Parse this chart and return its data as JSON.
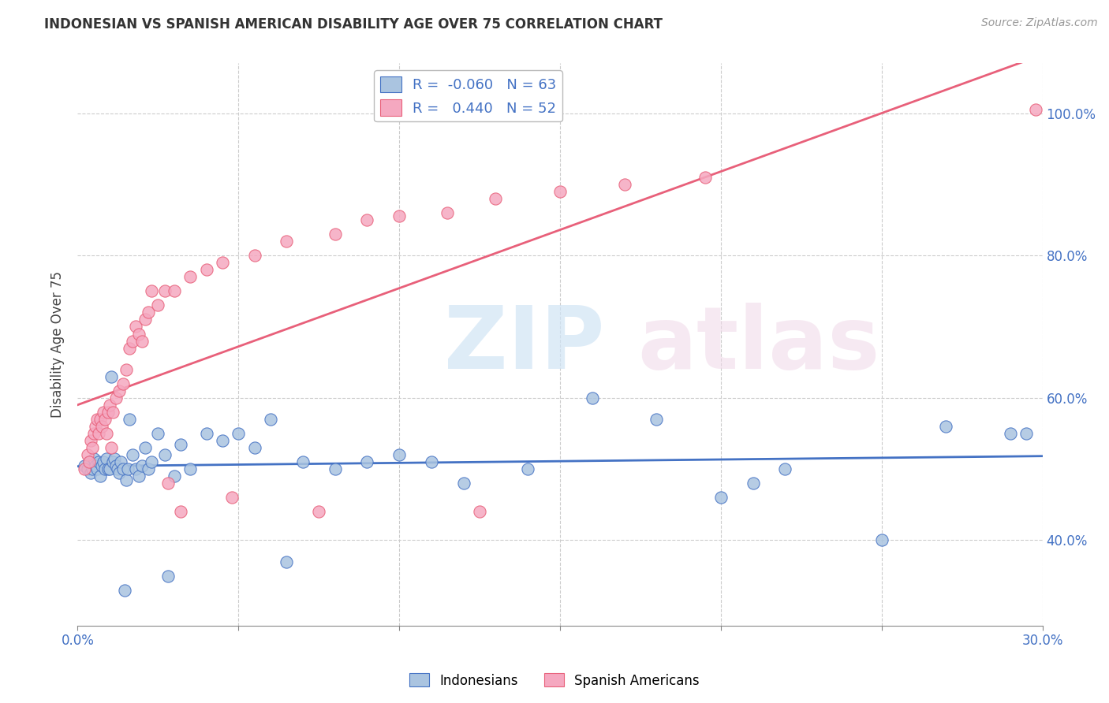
{
  "title": "INDONESIAN VS SPANISH AMERICAN DISABILITY AGE OVER 75 CORRELATION CHART",
  "source": "Source: ZipAtlas.com",
  "ylabel": "Disability Age Over 75",
  "xlim": [
    0.0,
    30.0
  ],
  "ylim": [
    28.0,
    107.0
  ],
  "yticks": [
    40.0,
    60.0,
    80.0,
    100.0
  ],
  "ytick_labels": [
    "40.0%",
    "60.0%",
    "80.0%",
    "100.0%"
  ],
  "legend_r_blue": "-0.060",
  "legend_n_blue": "63",
  "legend_r_pink": "0.440",
  "legend_n_pink": "52",
  "blue_color": "#aac4e0",
  "pink_color": "#f5a8c0",
  "trend_blue": "#4472c4",
  "trend_pink": "#e8607a",
  "indonesians_x": [
    0.2,
    0.3,
    0.35,
    0.4,
    0.45,
    0.5,
    0.55,
    0.6,
    0.65,
    0.7,
    0.75,
    0.8,
    0.85,
    0.9,
    0.95,
    1.0,
    1.05,
    1.1,
    1.15,
    1.2,
    1.25,
    1.3,
    1.35,
    1.4,
    1.5,
    1.55,
    1.6,
    1.7,
    1.8,
    1.9,
    2.0,
    2.1,
    2.2,
    2.3,
    2.5,
    2.7,
    3.0,
    3.2,
    3.5,
    4.0,
    4.5,
    5.0,
    5.5,
    6.0,
    7.0,
    8.0,
    9.0,
    10.0,
    11.0,
    12.0,
    14.0,
    16.0,
    18.0,
    20.0,
    21.0,
    22.0,
    25.0,
    27.0,
    29.0,
    29.5,
    1.45,
    2.8,
    6.5
  ],
  "indonesians_y": [
    50.5,
    50.0,
    51.0,
    49.5,
    50.0,
    51.5,
    50.5,
    50.0,
    51.0,
    49.0,
    50.5,
    51.0,
    50.0,
    51.5,
    50.0,
    50.0,
    63.0,
    51.0,
    51.5,
    50.5,
    50.0,
    49.5,
    51.0,
    50.0,
    48.5,
    50.0,
    57.0,
    52.0,
    50.0,
    49.0,
    50.5,
    53.0,
    50.0,
    51.0,
    55.0,
    52.0,
    49.0,
    53.5,
    50.0,
    55.0,
    54.0,
    55.0,
    53.0,
    57.0,
    51.0,
    50.0,
    51.0,
    52.0,
    51.0,
    48.0,
    50.0,
    60.0,
    57.0,
    46.0,
    48.0,
    50.0,
    40.0,
    56.0,
    55.0,
    55.0,
    33.0,
    35.0,
    37.0
  ],
  "spanish_x": [
    0.2,
    0.3,
    0.4,
    0.45,
    0.5,
    0.55,
    0.6,
    0.65,
    0.7,
    0.75,
    0.8,
    0.85,
    0.9,
    0.95,
    1.0,
    1.1,
    1.2,
    1.3,
    1.4,
    1.5,
    1.6,
    1.7,
    1.8,
    1.9,
    2.0,
    2.1,
    2.2,
    2.3,
    2.5,
    2.7,
    3.0,
    3.5,
    4.0,
    4.5,
    5.5,
    6.5,
    8.0,
    9.0,
    10.0,
    11.5,
    13.0,
    15.0,
    17.0,
    19.5,
    29.8,
    0.35,
    1.05,
    2.8,
    4.8,
    7.5,
    12.5,
    3.2
  ],
  "spanish_y": [
    50.0,
    52.0,
    54.0,
    53.0,
    55.0,
    56.0,
    57.0,
    55.0,
    57.0,
    56.0,
    58.0,
    57.0,
    55.0,
    58.0,
    59.0,
    58.0,
    60.0,
    61.0,
    62.0,
    64.0,
    67.0,
    68.0,
    70.0,
    69.0,
    68.0,
    71.0,
    72.0,
    75.0,
    73.0,
    75.0,
    75.0,
    77.0,
    78.0,
    79.0,
    80.0,
    82.0,
    83.0,
    85.0,
    85.5,
    86.0,
    88.0,
    89.0,
    90.0,
    91.0,
    100.5,
    51.0,
    53.0,
    48.0,
    46.0,
    44.0,
    44.0,
    44.0
  ]
}
